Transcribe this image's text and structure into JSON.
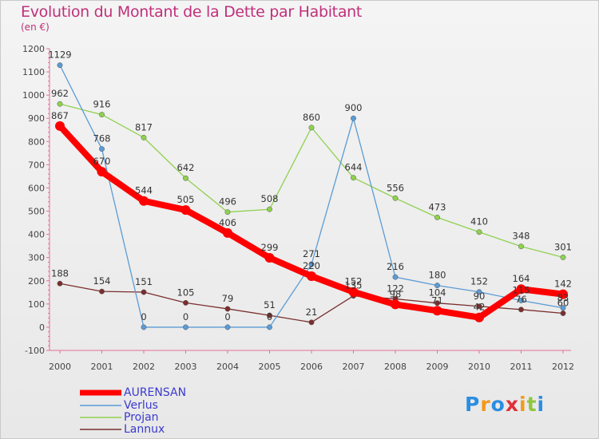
{
  "title": "Evolution du Montant de la Dette par Habitant",
  "subtitle": "(en €)",
  "logo_text": "Proxiti",
  "chart_data": {
    "type": "line",
    "x": [
      "2000",
      "2001",
      "2002",
      "2003",
      "2004",
      "2005",
      "2006",
      "2007",
      "2008",
      "2009",
      "2010",
      "2011",
      "2012"
    ],
    "ylim": [
      -100,
      1200
    ],
    "yticks": [
      -100,
      0,
      100,
      200,
      300,
      400,
      500,
      600,
      700,
      800,
      900,
      1000,
      1100,
      1200
    ],
    "grid": false,
    "legend_position": "bottom-left",
    "series": [
      {
        "name": "AURENSAN",
        "color": "#ff0000",
        "values": [
          867,
          670,
          544,
          505,
          406,
          299,
          220,
          152,
          98,
          71,
          42,
          164,
          142
        ],
        "labels": [
          "867",
          "670",
          "544",
          "505",
          "406",
          "299",
          "220",
          "152",
          "98",
          "71",
          "42",
          "164",
          "142"
        ]
      },
      {
        "name": "Verlus",
        "color": "#5b9bd5",
        "values": [
          1129,
          768,
          0,
          0,
          0,
          0,
          271,
          900,
          216,
          180,
          152,
          115,
          83
        ],
        "labels": [
          "1129",
          "768",
          "0",
          "0",
          "0",
          "0",
          "271",
          "900",
          "216",
          "180",
          "152",
          "115",
          "83"
        ]
      },
      {
        "name": "Projan",
        "color": "#8fd14f",
        "values": [
          962,
          916,
          817,
          642,
          496,
          508,
          860,
          644,
          556,
          473,
          410,
          348,
          301
        ],
        "labels": [
          "962",
          "916",
          "817",
          "642",
          "496",
          "508",
          "860",
          "644",
          "556",
          "473",
          "410",
          "348",
          "301"
        ]
      },
      {
        "name": "Lannux",
        "color": "#7a2e2e",
        "values": [
          188,
          154,
          151,
          105,
          79,
          51,
          21,
          135,
          122,
          104,
          90,
          76,
          60
        ],
        "labels": [
          "188",
          "154",
          "151",
          "105",
          "79",
          "51",
          "21",
          "135",
          "122",
          "104",
          "90",
          "76",
          "60"
        ]
      }
    ]
  }
}
